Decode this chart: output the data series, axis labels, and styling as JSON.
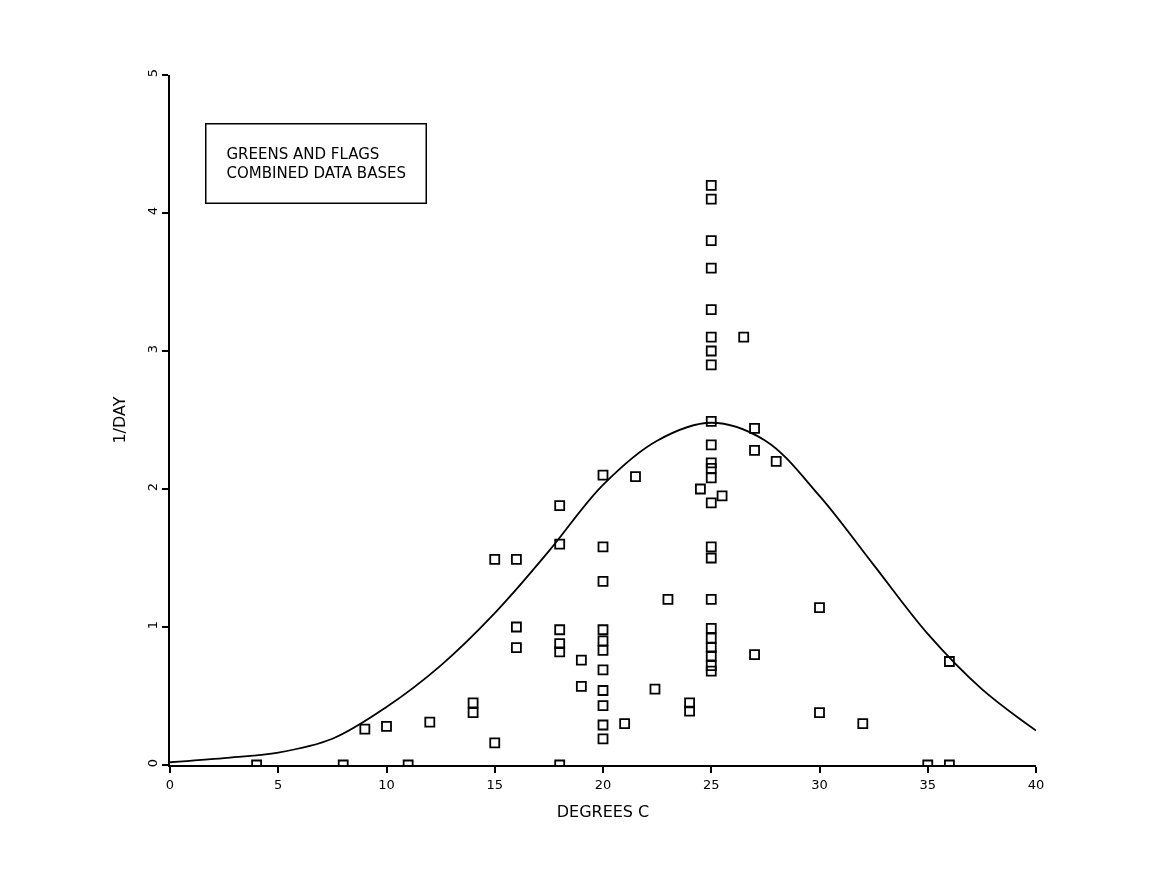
{
  "chart_data": {
    "type": "scatter",
    "xlabel": "DEGREES C",
    "ylabel": "1/DAY",
    "annotations": [
      "GREENS AND FLAGS\nCOMBINED DATA BASES"
    ],
    "xlim": [
      0,
      40
    ],
    "xticks": [
      0,
      5,
      10,
      15,
      20,
      25,
      30,
      35,
      40
    ],
    "ylim": [
      0,
      5
    ],
    "yticks": [
      0,
      1,
      2,
      3,
      4,
      5
    ],
    "series": [
      {
        "color": "#000000",
        "marker": "square",
        "x": [
          4,
          8,
          11,
          18,
          35,
          36,
          9,
          10,
          12,
          14,
          14,
          15,
          15,
          16,
          16,
          16,
          18,
          18,
          18,
          18,
          18,
          19,
          19,
          20,
          20,
          20,
          20,
          20,
          20,
          20,
          20,
          20,
          20,
          20,
          21,
          21.5,
          22.4,
          23,
          24,
          24,
          24.5,
          25,
          25,
          25,
          25,
          25,
          25,
          25,
          25,
          25,
          25,
          25,
          25,
          25,
          25,
          25,
          25,
          25,
          25,
          25,
          25,
          25,
          25,
          25,
          25.5,
          26.5,
          27,
          27,
          27,
          28,
          30,
          30,
          32,
          36
        ],
        "values": [
          0,
          0,
          0,
          0,
          0,
          0,
          0.26,
          0.28,
          0.31,
          0.38,
          0.45,
          0.16,
          1.49,
          1.49,
          1.0,
          0.85,
          1.88,
          1.6,
          0.98,
          0.88,
          0.82,
          0.76,
          0.57,
          2.1,
          1.58,
          1.33,
          0.98,
          0.9,
          0.83,
          0.69,
          0.54,
          0.43,
          0.29,
          0.19,
          0.3,
          2.09,
          0.55,
          1.2,
          0.45,
          0.39,
          2.0,
          4.2,
          4.1,
          3.8,
          3.6,
          3.3,
          3.1,
          3.0,
          2.9,
          2.49,
          2.32,
          2.19,
          2.15,
          2.08,
          1.9,
          1.58,
          1.5,
          1.2,
          0.99,
          0.92,
          0.85,
          0.79,
          0.72,
          0.68,
          1.95,
          3.1,
          2.44,
          2.28,
          0.8,
          2.2,
          1.14,
          0.38,
          0.3,
          0.75
        ]
      },
      {
        "type": "line",
        "color": "#000000",
        "marker": "none",
        "line_style": "solid",
        "x": [
          0,
          2.5,
          5,
          7.5,
          10,
          12.5,
          15,
          17.5,
          20,
          22.5,
          25,
          27.5,
          30,
          32.5,
          35,
          37.5,
          40
        ],
        "values": [
          0.02,
          0.05,
          0.09,
          0.19,
          0.42,
          0.72,
          1.1,
          1.55,
          2.03,
          2.35,
          2.48,
          2.35,
          1.95,
          1.45,
          0.95,
          0.55,
          0.25
        ]
      }
    ]
  }
}
